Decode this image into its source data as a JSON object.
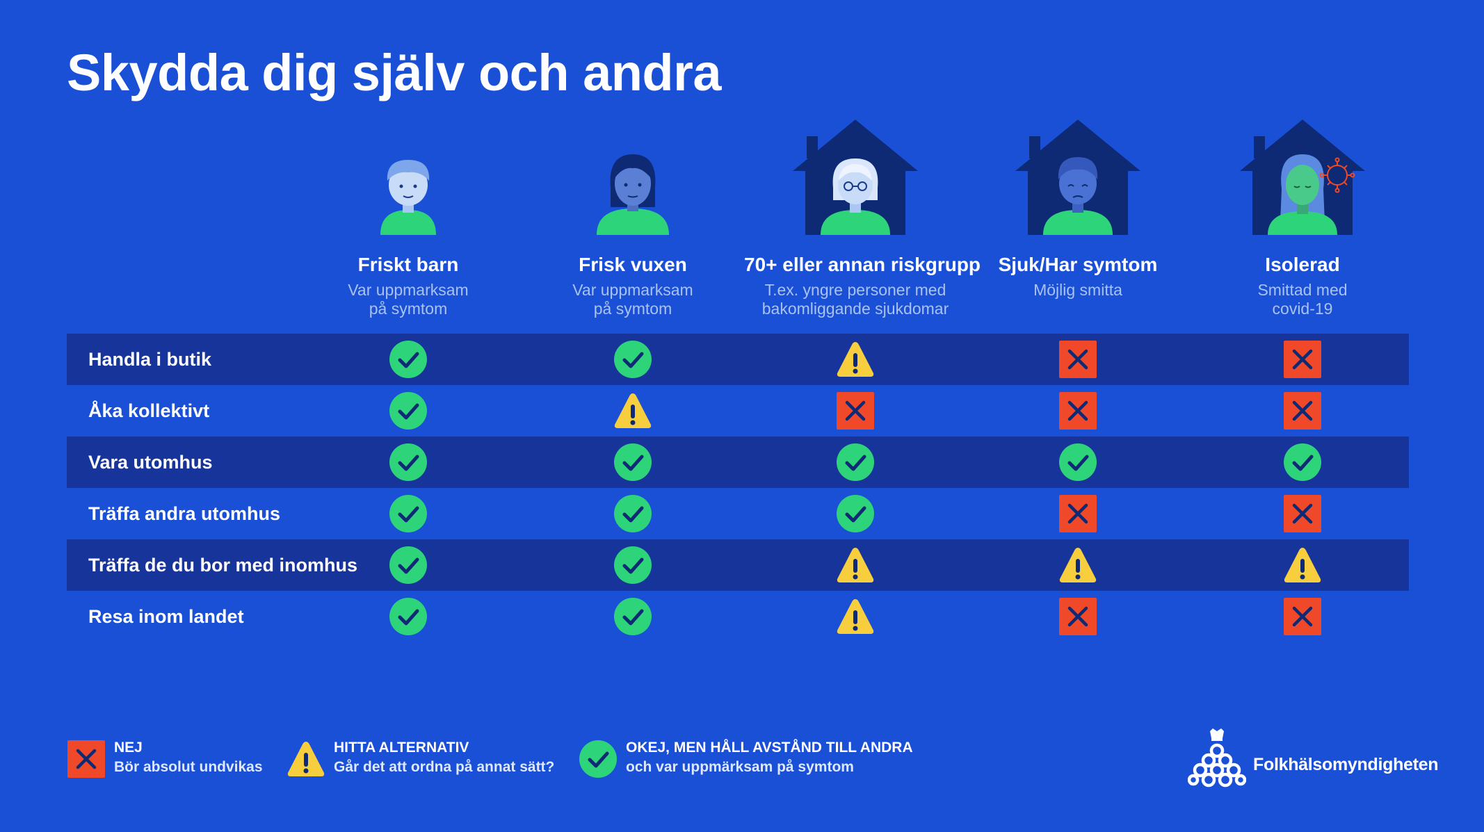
{
  "title": "Skydda dig själv och andra",
  "colors": {
    "background": "#1a50d6",
    "row_dark": "#17349a",
    "ok": "#2ed47a",
    "warn": "#f7cf3e",
    "no": "#f0492a"
  },
  "columns": [
    {
      "heading": "Friskt barn",
      "sub": "Var uppmarksam\npå symtom",
      "icon": "healthy-child-icon"
    },
    {
      "heading": "Frisk vuxen",
      "sub": "Var uppmarksam\npå symtom",
      "icon": "healthy-adult-icon"
    },
    {
      "heading": "70+ eller annan riskgrupp",
      "sub": "T.ex. yngre personer med\nbakomliggande sjukdomar",
      "icon": "elderly-at-home-icon"
    },
    {
      "heading": "Sjuk/Har symtom",
      "sub": "Möjlig smitta",
      "icon": "sick-at-home-icon"
    },
    {
      "heading": "Isolerad",
      "sub": "Smittad med\ncovid-19",
      "icon": "isolated-with-virus-icon"
    }
  ],
  "rows": [
    {
      "label": "Handla i butik",
      "values": [
        "ok",
        "ok",
        "warn",
        "no",
        "no"
      ]
    },
    {
      "label": "Åka kollektivt",
      "values": [
        "ok",
        "warn",
        "no",
        "no",
        "no"
      ]
    },
    {
      "label": "Vara utomhus",
      "values": [
        "ok",
        "ok",
        "ok",
        "ok",
        "ok"
      ]
    },
    {
      "label": "Träffa andra utomhus",
      "values": [
        "ok",
        "ok",
        "ok",
        "no",
        "no"
      ]
    },
    {
      "label": "Träffa de du bor med inomhus",
      "values": [
        "ok",
        "ok",
        "warn",
        "warn",
        "warn"
      ]
    },
    {
      "label": "Resa inom landet",
      "values": [
        "ok",
        "ok",
        "warn",
        "no",
        "no"
      ]
    }
  ],
  "legend": {
    "no": {
      "title": "NEJ",
      "desc": "Bör absolut undvikas",
      "icon": "red-x-icon"
    },
    "warn": {
      "title": "HITTA ALTERNATIV",
      "desc": "Går det att ordna på annat sätt?",
      "icon": "warning-triangle-icon"
    },
    "ok": {
      "title": "OKEJ, MEN HÅLL AVSTÅND TILL ANDRA",
      "desc": "och var uppmärksam på symtom",
      "icon": "green-check-icon"
    }
  },
  "logo": {
    "text": "Folkhälsomyndigheten",
    "icon": "folkhalsomyndigheten-crown-logo"
  }
}
